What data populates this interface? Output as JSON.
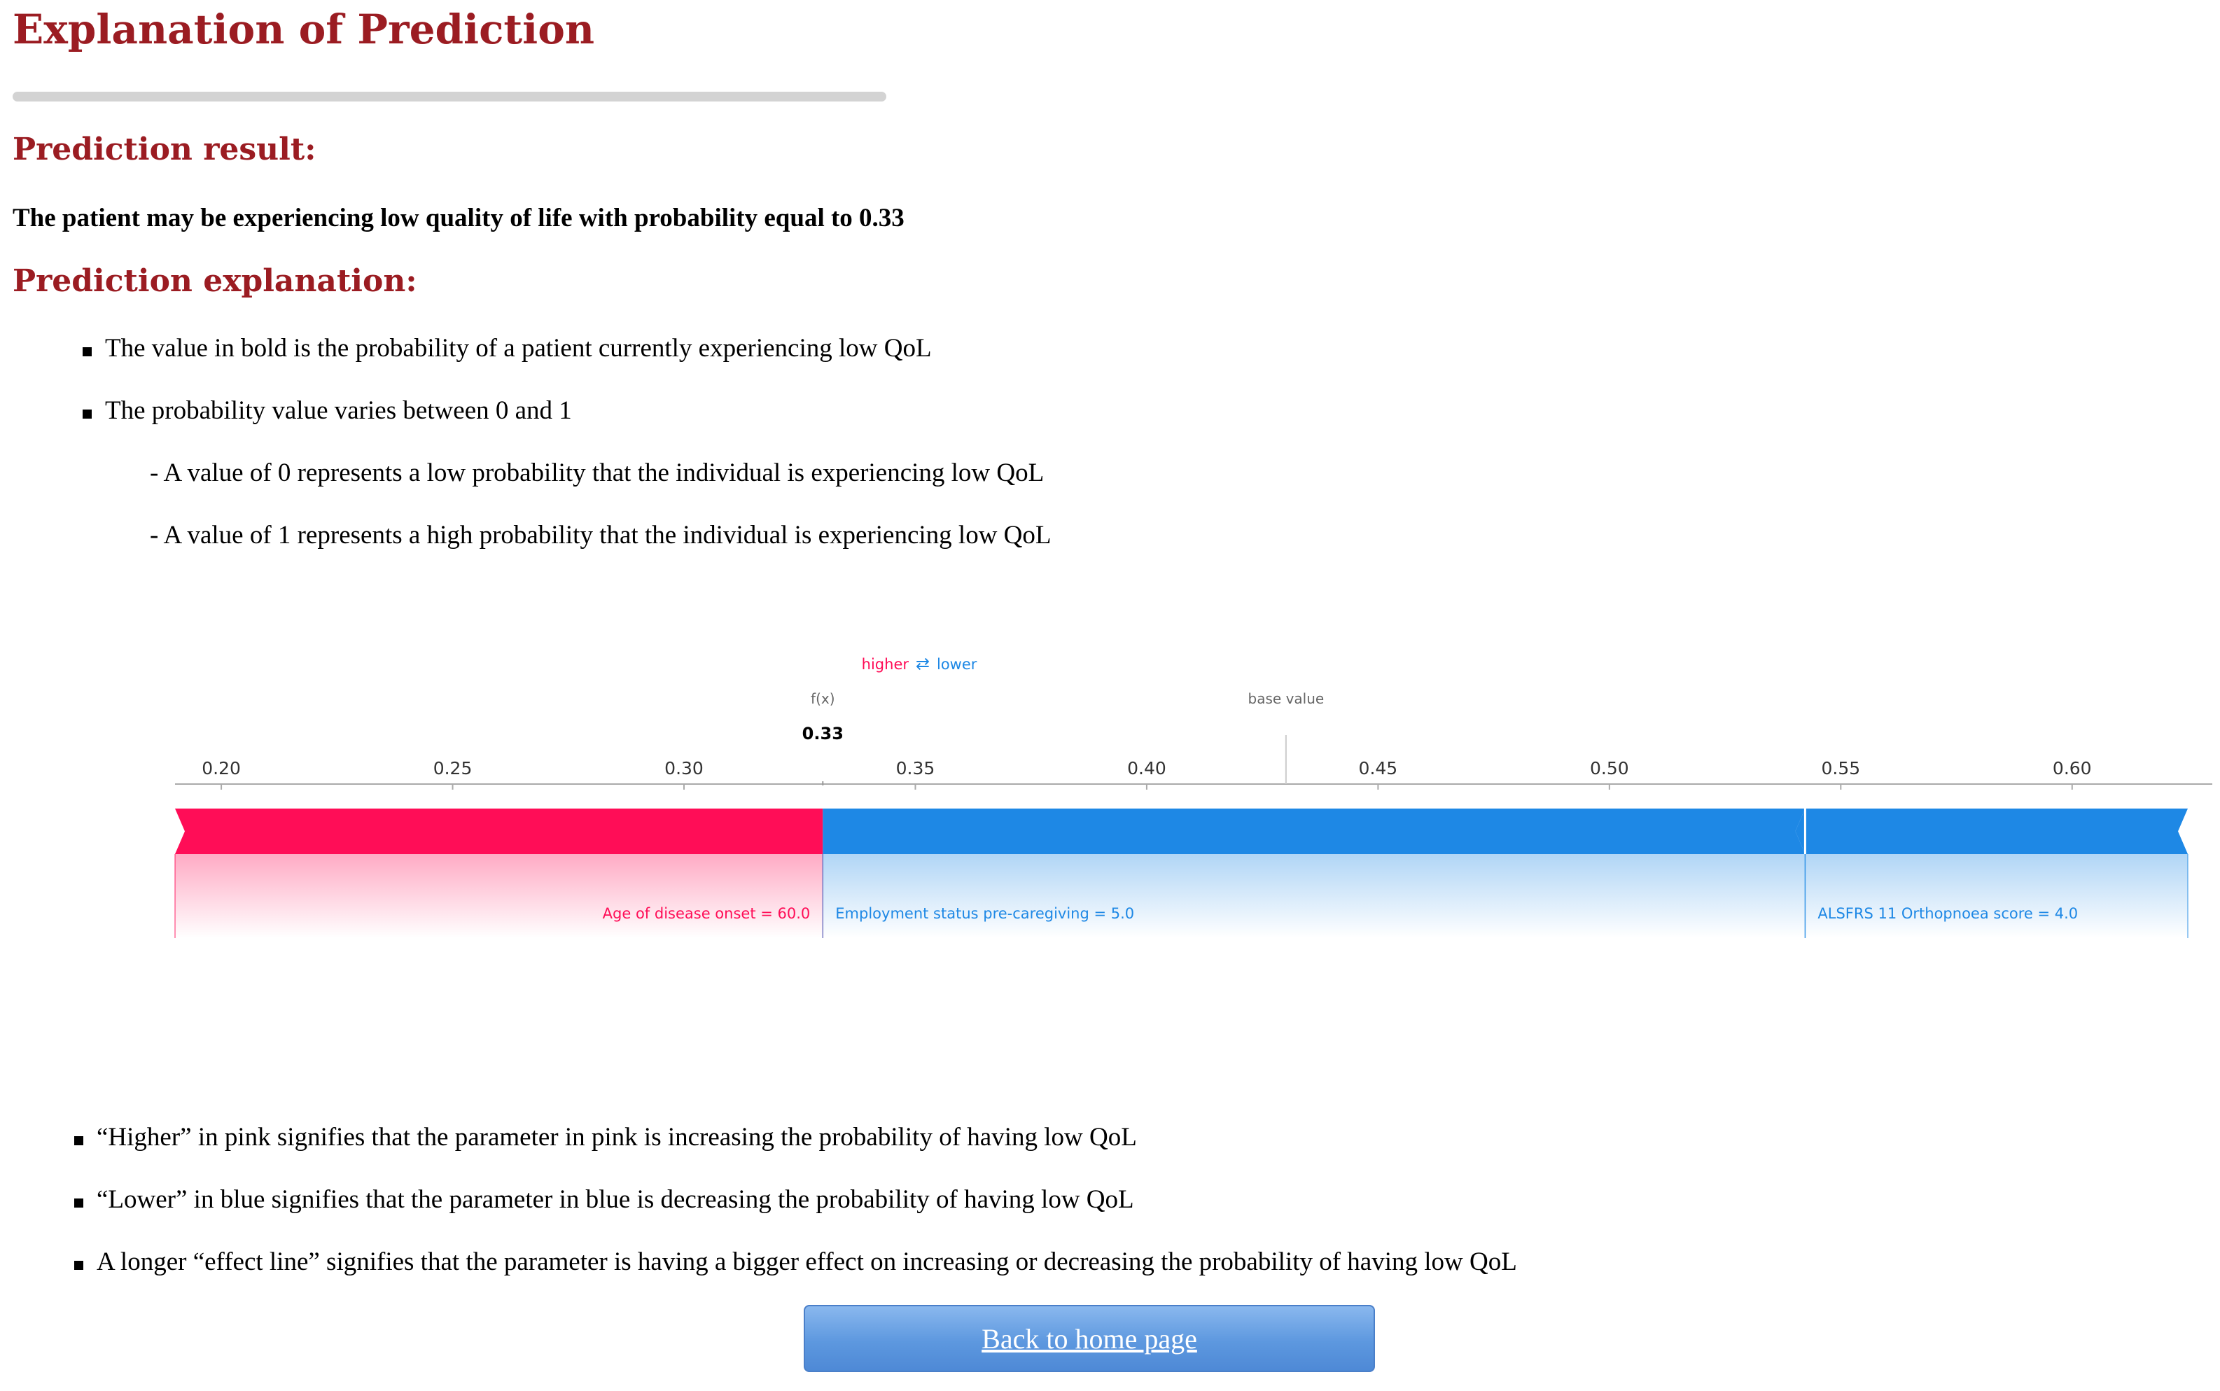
{
  "page": {
    "title": "Explanation of Prediction",
    "result_heading": "Prediction result:",
    "result_text": "The patient may be experiencing low quality of life with probability equal to 0.33",
    "explanation_heading": "Prediction explanation:",
    "bullets_top": [
      "The value in bold is the probability of a patient currently experiencing low QoL",
      "The probability value varies between 0 and 1"
    ],
    "sub_items": [
      "- A value of 0 represents a low probability that the individual is experiencing low QoL",
      "- A value of 1 represents a high probability that the individual is experiencing low QoL"
    ],
    "bullets_bottom": [
      "“Higher” in pink signifies that the parameter in pink is increasing the probability of having low QoL",
      "“Lower” in blue signifies that the parameter in blue is decreasing the probability of having low QoL",
      "A longer “effect line” signifies that the parameter is having a bigger effect on increasing or decreasing the probability of having low QoL"
    ],
    "back_button": "Back to home page"
  },
  "colors": {
    "heading": "#9b1c22",
    "positive": "#ff0d57",
    "negative": "#1e88e5",
    "button": "#5d98df"
  },
  "chart_data": {
    "type": "bar",
    "legend": {
      "higher": "higher",
      "lower": "lower",
      "arrow": "⇄"
    },
    "fx_label": "f(x)",
    "fx_value": 0.33,
    "fx_text": "0.33",
    "base_label": "base value",
    "base_value": 0.4301,
    "xlim": [
      0.19,
      0.625
    ],
    "ticks": [
      0.2,
      0.25,
      0.3,
      0.35,
      0.4,
      0.45,
      0.5,
      0.55,
      0.6
    ],
    "tick_labels": [
      "0.20",
      "0.25",
      "0.30",
      "0.35",
      "0.40",
      "0.45",
      "0.50",
      "0.55",
      "0.60"
    ],
    "features": [
      {
        "label": "Age of disease onset = 60.0",
        "direction": "higher",
        "start": 0.19,
        "end": 0.33
      },
      {
        "label": "Employment status pre-caregiving = 5.0",
        "direction": "lower",
        "start": 0.33,
        "end": 0.5423
      },
      {
        "label": "ALSFRS 11 Orthopnoea score = 4.0",
        "direction": "lower",
        "start": 0.5423,
        "end": 0.625
      }
    ]
  }
}
